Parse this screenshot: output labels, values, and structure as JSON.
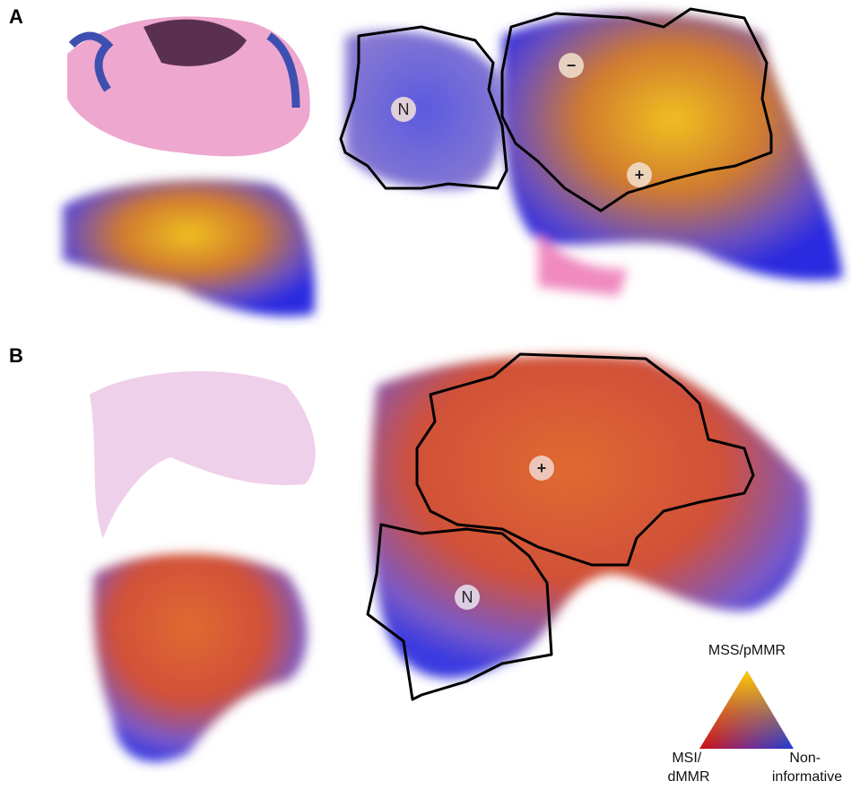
{
  "panels": [
    {
      "label": "A",
      "markers": [
        "N",
        "−",
        "+"
      ]
    },
    {
      "label": "B",
      "markers": [
        "+",
        "N"
      ]
    }
  ],
  "legend": {
    "top": "MSS/pMMR",
    "left_lines": [
      "MSI/",
      "dMMR"
    ],
    "right_lines": [
      "Non-",
      "informative"
    ]
  }
}
